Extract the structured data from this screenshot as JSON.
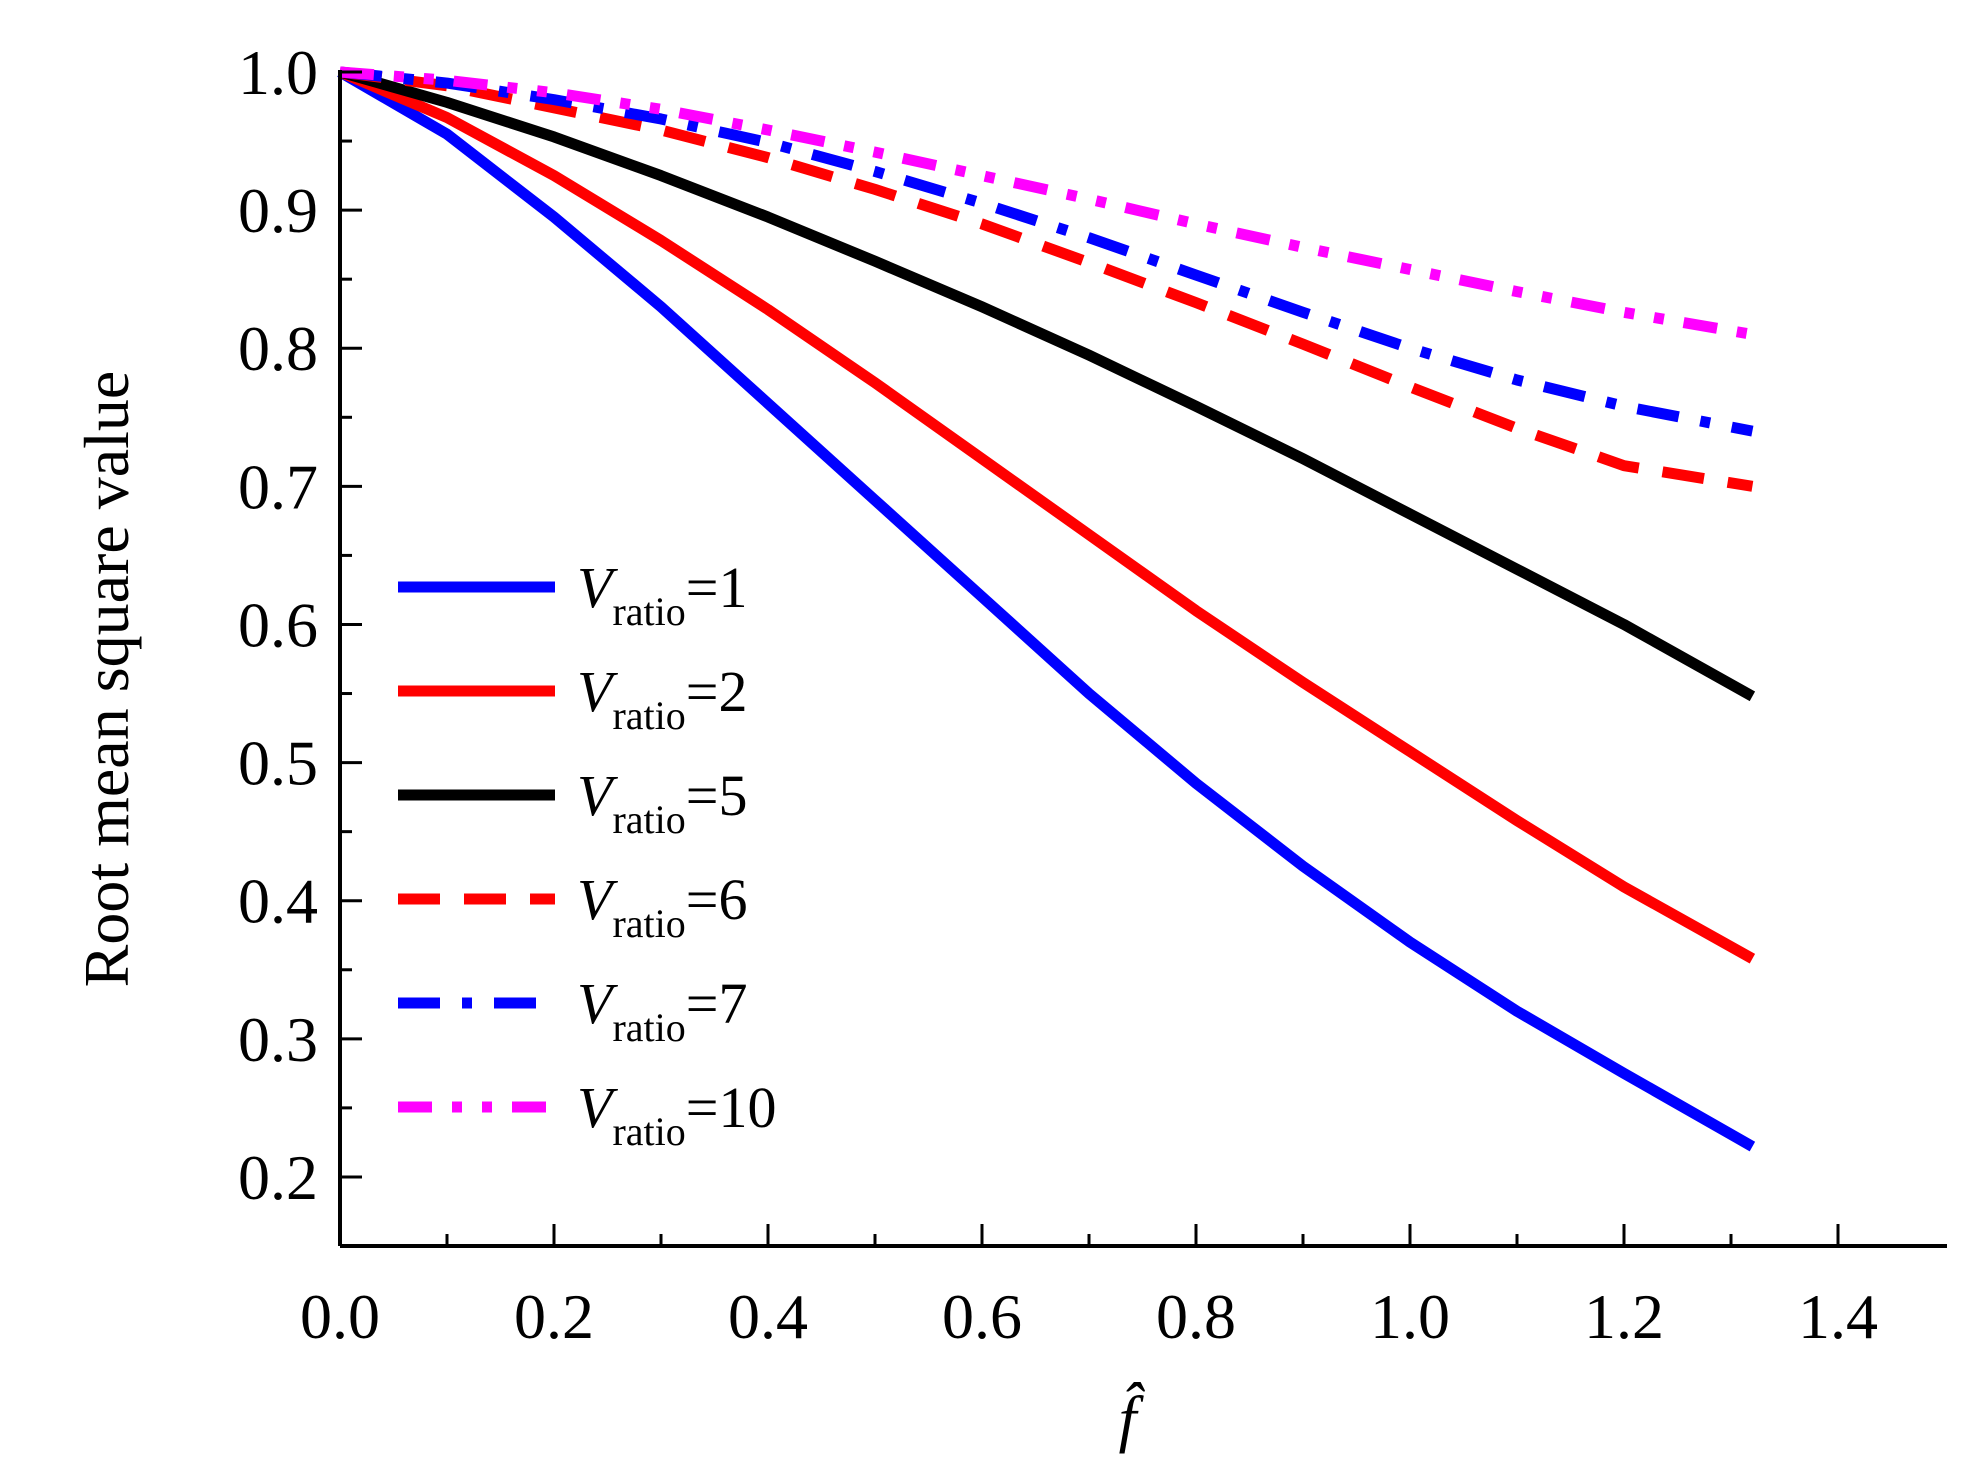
{
  "chart_data": {
    "type": "line",
    "title": "",
    "xlabel": "f̂",
    "ylabel": "Root mean square value",
    "xlim": [
      0.0,
      1.5
    ],
    "ylim": [
      0.15,
      1.0
    ],
    "x_ticks": [
      0.0,
      0.2,
      0.4,
      0.6,
      0.8,
      1.0,
      1.2,
      1.4
    ],
    "x_tick_labels": [
      "0.0",
      "0.2",
      "0.4",
      "0.6",
      "0.8",
      "1.0",
      "1.2",
      "1.4"
    ],
    "y_ticks": [
      0.2,
      0.3,
      0.4,
      0.5,
      0.6,
      0.7,
      0.8,
      0.9,
      1.0
    ],
    "y_tick_labels": [
      "0.2",
      "0.3",
      "0.4",
      "0.5",
      "0.6",
      "0.7",
      "0.8",
      "0.9",
      "1.0"
    ],
    "grid": false,
    "legend_position": "left",
    "x": [
      0.0,
      0.1,
      0.2,
      0.3,
      0.4,
      0.5,
      0.6,
      0.7,
      0.8,
      0.9,
      1.0,
      1.1,
      1.2,
      1.32
    ],
    "series": [
      {
        "name": "Vratio=1",
        "legend_var": "V",
        "legend_sub": "ratio",
        "legend_value": "=1",
        "color": "#0000ff",
        "style": "solid",
        "values": [
          1.0,
          0.955,
          0.895,
          0.83,
          0.76,
          0.69,
          0.62,
          0.55,
          0.485,
          0.425,
          0.37,
          0.32,
          0.275,
          0.222
        ]
      },
      {
        "name": "Vratio=2",
        "legend_var": "V",
        "legend_sub": "ratio",
        "legend_value": "=2",
        "color": "#ff0000",
        "style": "solid",
        "values": [
          1.0,
          0.967,
          0.925,
          0.878,
          0.828,
          0.775,
          0.72,
          0.665,
          0.61,
          0.558,
          0.508,
          0.458,
          0.41,
          0.358
        ]
      },
      {
        "name": "Vratio=5",
        "legend_var": "V",
        "legend_sub": "ratio",
        "legend_value": "=5",
        "color": "#000000",
        "style": "solid",
        "values": [
          1.0,
          0.978,
          0.953,
          0.925,
          0.895,
          0.863,
          0.83,
          0.795,
          0.758,
          0.72,
          0.68,
          0.64,
          0.6,
          0.548
        ]
      },
      {
        "name": "Vratio=6",
        "legend_var": "V",
        "legend_sub": "ratio",
        "legend_value": "=6",
        "color": "#ff0000",
        "style": "dash",
        "values": [
          1.0,
          0.99,
          0.974,
          0.958,
          0.938,
          0.915,
          0.89,
          0.862,
          0.833,
          0.803,
          0.772,
          0.742,
          0.715,
          0.7
        ]
      },
      {
        "name": "Vratio=7",
        "legend_var": "V",
        "legend_sub": "ratio",
        "legend_value": "=7",
        "color": "#0000ff",
        "style": "dashdot",
        "values": [
          1.0,
          0.992,
          0.98,
          0.966,
          0.949,
          0.928,
          0.905,
          0.88,
          0.853,
          0.826,
          0.8,
          0.777,
          0.758,
          0.74
        ]
      },
      {
        "name": "Vratio=10",
        "legend_var": "V",
        "legend_sub": "ratio",
        "legend_value": "=10",
        "color": "#ff00ff",
        "style": "dashdotdot",
        "values": [
          1.0,
          0.994,
          0.985,
          0.973,
          0.958,
          0.942,
          0.925,
          0.908,
          0.89,
          0.873,
          0.857,
          0.841,
          0.826,
          0.81
        ]
      }
    ]
  }
}
